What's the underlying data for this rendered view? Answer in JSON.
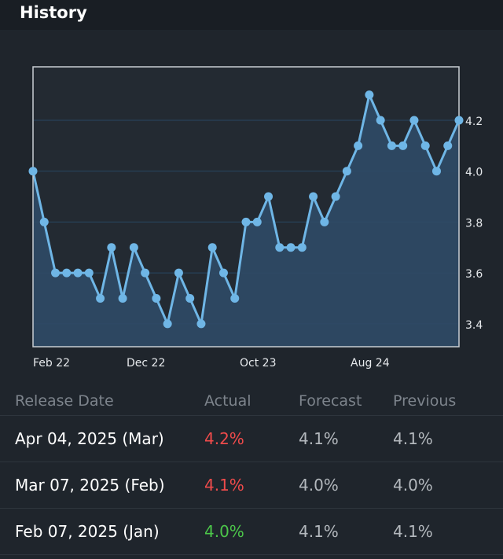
{
  "header": {
    "title": "History"
  },
  "colors": {
    "line": "#6fb6e6",
    "fill": "#2f4a66",
    "grid": "#284763",
    "actual_up": "#ef4b4b",
    "actual_down": "#4cc64a"
  },
  "chart_data": {
    "type": "line",
    "x_ticks": [
      "Feb 22",
      "Dec 22",
      "Oct 23",
      "Aug 24"
    ],
    "y_ticks": [
      "3.4",
      "3.6",
      "3.8",
      "4.0",
      "4.2"
    ],
    "ylim": [
      3.31,
      4.41
    ],
    "grid": "horizontal",
    "values": [
      4.0,
      3.8,
      3.6,
      3.6,
      3.6,
      3.6,
      3.5,
      3.7,
      3.5,
      3.7,
      3.6,
      3.5,
      3.4,
      3.6,
      3.5,
      3.4,
      3.7,
      3.6,
      3.5,
      3.8,
      3.8,
      3.9,
      3.7,
      3.7,
      3.7,
      3.9,
      3.8,
      3.9,
      4.0,
      4.1,
      4.3,
      4.2,
      4.1,
      4.1,
      4.2,
      4.1,
      4.0,
      4.1,
      4.2
    ]
  },
  "table": {
    "headers": [
      "Release Date",
      "Actual",
      "Forecast",
      "Previous"
    ],
    "rows": [
      {
        "date": "Apr 04, 2025 (Mar)",
        "actual": "4.2%",
        "actual_trend": "up",
        "forecast": "4.1%",
        "previous": "4.1%"
      },
      {
        "date": "Mar 07, 2025 (Feb)",
        "actual": "4.1%",
        "actual_trend": "up",
        "forecast": "4.0%",
        "previous": "4.0%"
      },
      {
        "date": "Feb 07, 2025 (Jan)",
        "actual": "4.0%",
        "actual_trend": "down",
        "forecast": "4.1%",
        "previous": "4.1%"
      }
    ]
  }
}
